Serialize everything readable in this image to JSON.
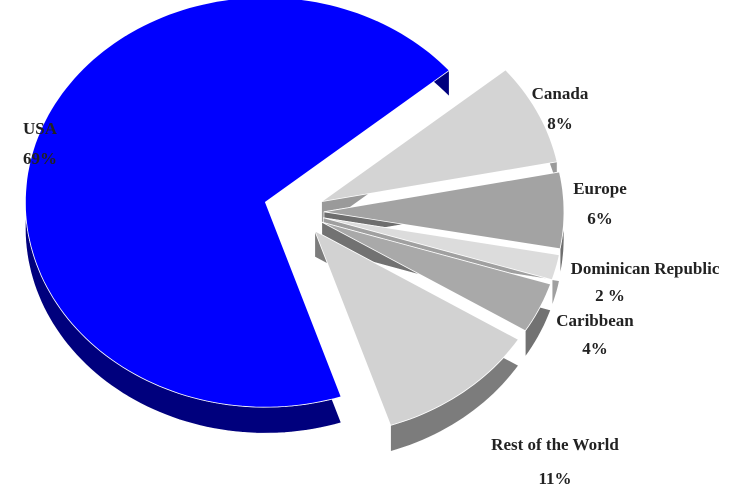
{
  "chart_data": {
    "type": "pie",
    "categories": [
      "USA",
      "Canada",
      "Europe",
      "Dominican Republic",
      "Caribbean",
      "Rest of the World"
    ],
    "values": [
      69,
      8,
      6,
      2,
      4,
      11
    ],
    "value_labels": [
      "69%",
      "8%",
      "6%",
      "2 %",
      "4%",
      "11%"
    ],
    "colors": [
      "#0000ff",
      "#d4d4d4",
      "#a3a3a3",
      "#dcdcdc",
      "#a9a9a9",
      "#d2d2d2"
    ],
    "side_colors": [
      "#00007d",
      "#9a9a9a",
      "#6e6e6e",
      "#a0a0a0",
      "#727272",
      "#7c7c7c"
    ]
  }
}
